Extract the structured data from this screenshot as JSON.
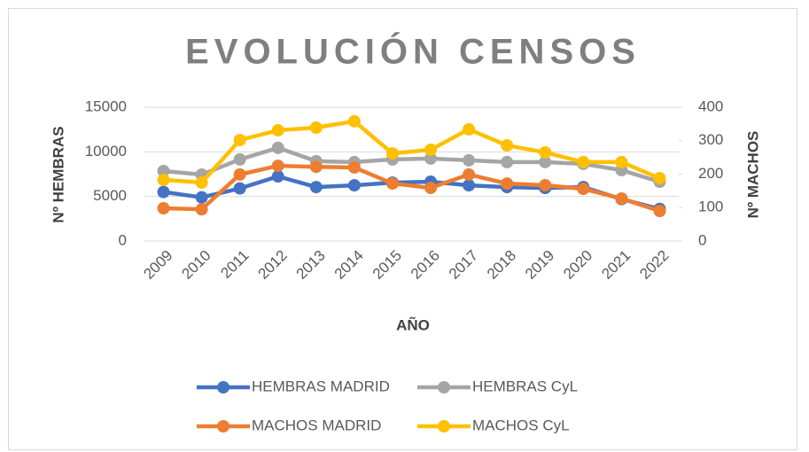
{
  "chart_data": {
    "type": "line",
    "title": "EVOLUCIÓN CENSOS",
    "x_label": "AÑO",
    "y_label": "Nº  HEMBRAS",
    "y2_label": "Nº MACHOS",
    "categories": [
      "2009",
      "2010",
      "2011",
      "2012",
      "2013",
      "2014",
      "2015",
      "2016",
      "2017",
      "2018",
      "2019",
      "2020",
      "2021",
      "2022"
    ],
    "ylim": [
      0,
      15000
    ],
    "yticks": [
      0,
      5000,
      10000,
      15000
    ],
    "y2lim": [
      0,
      400
    ],
    "y2ticks": [
      0,
      100,
      200,
      300,
      400
    ],
    "series": [
      {
        "name": "HEMBRAS MADRID",
        "color": "#4472c4",
        "values": [
          5500,
          4900,
          5900,
          7250,
          6050,
          6250,
          6550,
          6650,
          6250,
          6050,
          5950,
          6050,
          4700,
          3600
        ]
      },
      {
        "name": "HEMBRAS CyL",
        "color": "#a5a5a5",
        "values": [
          7850,
          7450,
          9150,
          10450,
          8950,
          8850,
          9150,
          9250,
          9050,
          8850,
          8850,
          8650,
          7950,
          6650
        ]
      },
      {
        "name": "MACHOS MADRID",
        "color": "#ed7d31",
        "axis": "y2",
        "values": [
          98,
          95,
          199,
          225,
          222,
          220,
          172,
          159,
          199,
          172,
          167,
          156,
          127,
          90
        ]
      },
      {
        "name": "MACHOS CyL",
        "color": "#ffc000",
        "axis": "y2",
        "values": [
          183,
          175,
          302,
          331,
          339,
          358,
          262,
          273,
          334,
          286,
          265,
          236,
          236,
          188
        ]
      }
    ]
  }
}
